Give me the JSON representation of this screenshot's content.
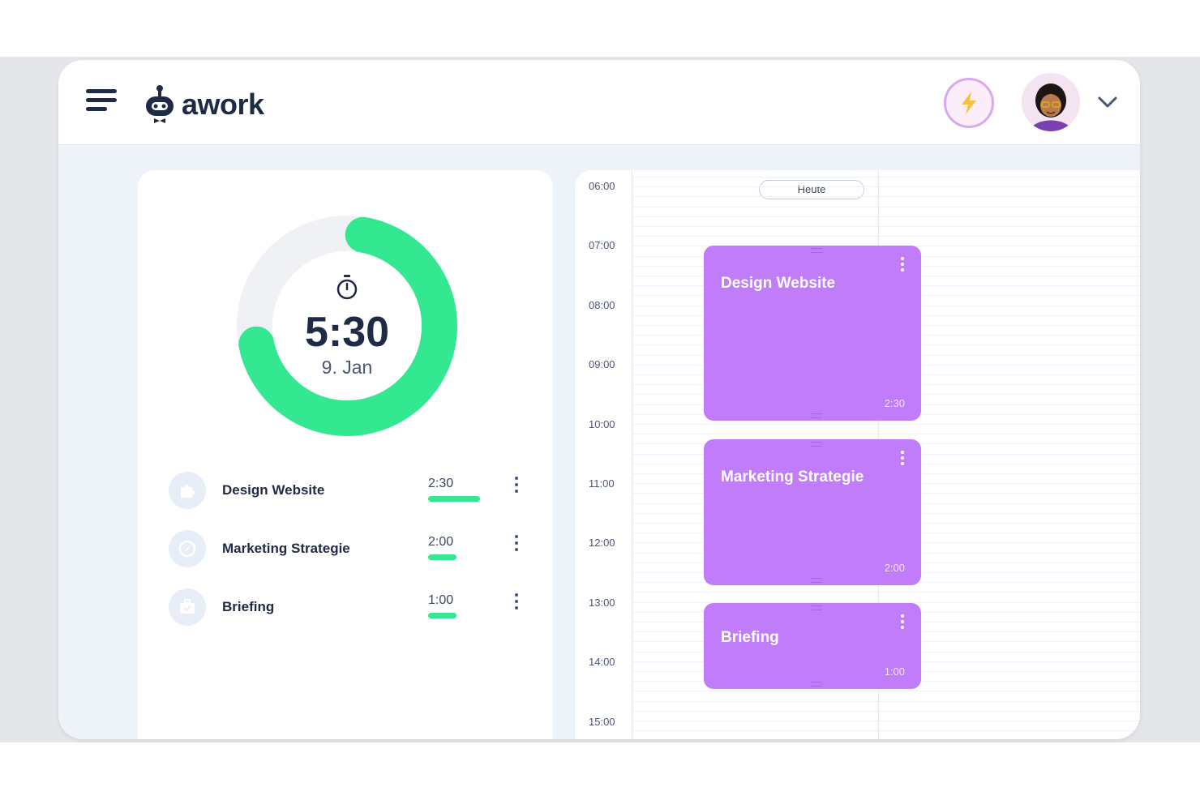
{
  "brand": {
    "name": "awork"
  },
  "header": {
    "menu_icon": "hamburger-menu-icon",
    "boost_icon": "lightning-bolt-icon",
    "profile_icon": "chevron-down-icon"
  },
  "timer": {
    "icon": "stopwatch-icon",
    "total": "5:30",
    "date": "9. Jan",
    "progress_fraction": 0.69,
    "colors": {
      "progress": "#34e891",
      "track": "#eff1f4"
    }
  },
  "tasks": [
    {
      "name": "Design Website",
      "time": "2:30",
      "icon": "puzzle-icon",
      "bar_fraction": 1.0
    },
    {
      "name": "Marketing Strategie",
      "time": "2:00",
      "icon": "compass-icon",
      "bar_fraction": 0.55
    },
    {
      "name": "Briefing",
      "time": "1:00",
      "icon": "briefcase-icon",
      "bar_fraction": 0.55
    }
  ],
  "calendar": {
    "today_label": "Heute",
    "hours": [
      "06:00",
      "07:00",
      "08:00",
      "09:00",
      "10:00",
      "11:00",
      "12:00",
      "13:00",
      "14:00",
      "15:00"
    ],
    "events": [
      {
        "title": "Design Website",
        "duration": "2:30",
        "start": "07:00",
        "end": "10:00"
      },
      {
        "title": "Marketing Strategie",
        "duration": "2:00",
        "start": "10:15",
        "end": "12:45"
      },
      {
        "title": "Briefing",
        "duration": "1:00",
        "start": "13:00",
        "end": "14:30"
      }
    ],
    "event_color": "#c07cf9"
  }
}
